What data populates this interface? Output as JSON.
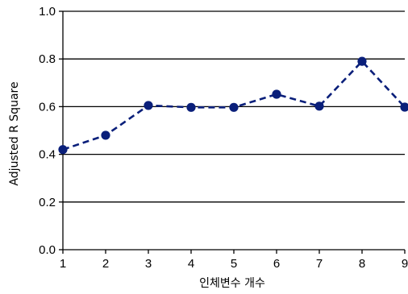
{
  "chart_data": {
    "type": "line",
    "title": "",
    "xlabel": "인체변수 개수",
    "ylabel": "Adjusted R Square",
    "x": [
      1,
      2,
      3,
      4,
      5,
      6,
      7,
      8,
      9
    ],
    "series": [
      {
        "values": [
          0.42,
          0.48,
          0.605,
          0.597,
          0.597,
          0.652,
          0.602,
          0.79,
          0.598
        ],
        "color": "#0a1f7a"
      }
    ],
    "xticks": [
      "1",
      "2",
      "3",
      "4",
      "5",
      "6",
      "7",
      "8",
      "9"
    ],
    "yticks": [
      "0.0",
      "0.2",
      "0.4",
      "0.6",
      "0.8",
      "1.0"
    ],
    "ylim": [
      0,
      1
    ],
    "xlim": [
      1,
      9
    ],
    "grid": true,
    "grid_axis": "y",
    "line_style": "dashed",
    "marker": "circle"
  }
}
